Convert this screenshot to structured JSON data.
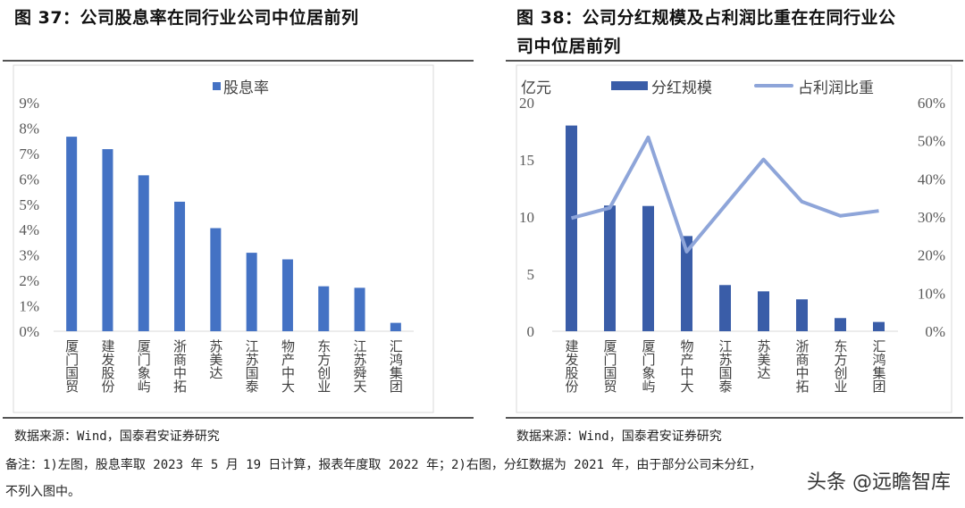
{
  "left": {
    "title": "图 37：公司股息率在同行业公司中位居前列",
    "source": "数据来源：Wind，国泰君安证券研究"
  },
  "right": {
    "title_line1": "图 38：公司分红规模及占利润比重在在同行业公",
    "title_line2": "司中位居前列",
    "source": "数据来源：Wind，国泰君安证券研究"
  },
  "note": {
    "line1": "备注：1)左图，股息率取 2023 年 5 月 19 日计算，报表年度取 2022 年；2)右图，分红数据为 2021 年，由于部分公司未分红，",
    "line2": "不列入图中。"
  },
  "watermark": "头条 @远瞻智库",
  "chart_data": [
    {
      "type": "bar",
      "legend": "股息率",
      "legend_position": "top",
      "categories": [
        "厦门国贸",
        "建发股份",
        "厦门象屿",
        "浙商中拓",
        "苏美达",
        "江苏国泰",
        "物产中大",
        "东方创业",
        "江苏舜天",
        "汇鸿集团"
      ],
      "series": [
        {
          "name": "股息率",
          "values": [
            7.66,
            7.17,
            6.14,
            5.1,
            4.06,
            3.09,
            2.83,
            1.77,
            1.71,
            0.33
          ],
          "color": "#4472C4"
        }
      ],
      "ylim": [
        0,
        9
      ],
      "yticks": [
        "0%",
        "1%",
        "2%",
        "3%",
        "4%",
        "5%",
        "6%",
        "7%",
        "8%",
        "9%"
      ],
      "grid": false
    },
    {
      "type": "bar+line",
      "legend_position": "top",
      "ylabel": "亿元",
      "categories": [
        "建发股份",
        "厦门国贸",
        "厦门象屿",
        "物产中大",
        "江苏国泰",
        "苏美达",
        "浙商中拓",
        "东方创业",
        "汇鸿集团"
      ],
      "series": [
        {
          "name": "分红规模",
          "type": "bar",
          "axis": "left",
          "values": [
            18.0,
            11.0,
            10.96,
            8.33,
            4.04,
            3.49,
            2.79,
            1.15,
            0.81
          ],
          "color": "#3A5DA8"
        },
        {
          "name": "占利润比重",
          "type": "line",
          "axis": "right",
          "values": [
            29.7,
            32.4,
            50.9,
            20.9,
            33.0,
            45.1,
            34.0,
            30.3,
            31.6
          ],
          "color": "#8EA5D9"
        }
      ],
      "ylim": [
        0,
        20
      ],
      "yticks": [
        "0",
        "5",
        "10",
        "15",
        "20"
      ],
      "y2lim": [
        0,
        60
      ],
      "y2ticks": [
        "0%",
        "10%",
        "20%",
        "30%",
        "40%",
        "50%",
        "60%"
      ],
      "grid": false
    }
  ]
}
